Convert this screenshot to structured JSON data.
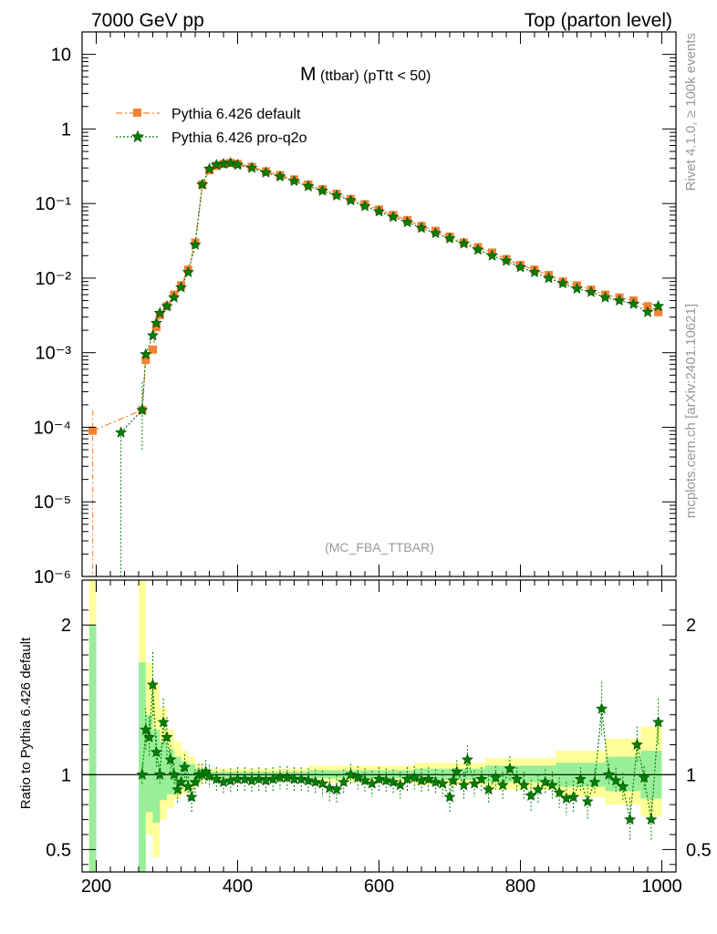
{
  "header": {
    "left": "7000 GeV pp",
    "right": "Top (parton level)"
  },
  "side_labels": {
    "rivet": "Rivet 4.1.0, ≥ 100k events",
    "mcplots": "mcplots.cern.ch [arXiv:2401.10621]"
  },
  "main_title": {
    "symbol": "M",
    "detail": "(ttbar) (pTtt < 50)"
  },
  "analysis_tag": "(MC_FBA_TTBAR)",
  "colors": {
    "default": "#f58231",
    "proq2o": "#008000",
    "band_outer": "#ffff99",
    "band_inner": "#99ee99"
  },
  "chart_data": [
    {
      "type": "line",
      "name": "main",
      "yscale": "log",
      "xlim": [
        180,
        1020
      ],
      "ylim": [
        1e-06,
        20
      ],
      "ytick_labels": [
        "10⁻⁶",
        "10⁻⁵",
        "10⁻⁴",
        "10⁻³",
        "10⁻²",
        "10⁻¹",
        "1",
        "10"
      ],
      "legend": [
        "Pythia 6.426 default",
        "Pythia 6.426 pro-q2o"
      ],
      "series": [
        {
          "name": "Pythia 6.426 default",
          "points": [
            [
              195,
              9e-05
            ],
            [
              265,
              0.00017
            ],
            [
              270,
              0.0008
            ],
            [
              280,
              0.0011
            ],
            [
              285,
              0.0022
            ],
            [
              290,
              0.0032
            ],
            [
              300,
              0.0042
            ],
            [
              310,
              0.006
            ],
            [
              320,
              0.008
            ],
            [
              330,
              0.013
            ],
            [
              340,
              0.03
            ],
            [
              350,
              0.18
            ],
            [
              360,
              0.28
            ],
            [
              370,
              0.32
            ],
            [
              380,
              0.34
            ],
            [
              390,
              0.35
            ],
            [
              400,
              0.34
            ],
            [
              420,
              0.31
            ],
            [
              440,
              0.27
            ],
            [
              460,
              0.24
            ],
            [
              480,
              0.21
            ],
            [
              500,
              0.18
            ],
            [
              520,
              0.155
            ],
            [
              540,
              0.135
            ],
            [
              560,
              0.115
            ],
            [
              580,
              0.098
            ],
            [
              600,
              0.083
            ],
            [
              620,
              0.07
            ],
            [
              640,
              0.06
            ],
            [
              660,
              0.05
            ],
            [
              680,
              0.043
            ],
            [
              700,
              0.036
            ],
            [
              720,
              0.03
            ],
            [
              740,
              0.026
            ],
            [
              760,
              0.022
            ],
            [
              780,
              0.018
            ],
            [
              800,
              0.015
            ],
            [
              820,
              0.013
            ],
            [
              840,
              0.011
            ],
            [
              860,
              0.009
            ],
            [
              880,
              0.008
            ],
            [
              900,
              0.007
            ],
            [
              920,
              0.006
            ],
            [
              940,
              0.0055
            ],
            [
              960,
              0.005
            ],
            [
              980,
              0.0042
            ],
            [
              995,
              0.0035
            ]
          ]
        },
        {
          "name": "Pythia 6.426 pro-q2o",
          "points": [
            [
              235,
              8.5e-05
            ],
            [
              265,
              0.00017
            ],
            [
              270,
              0.00095
            ],
            [
              280,
              0.0017
            ],
            [
              285,
              0.0025
            ],
            [
              290,
              0.0034
            ],
            [
              300,
              0.0042
            ],
            [
              310,
              0.0055
            ],
            [
              320,
              0.0075
            ],
            [
              330,
              0.012
            ],
            [
              340,
              0.028
            ],
            [
              350,
              0.18
            ],
            [
              360,
              0.29
            ],
            [
              370,
              0.33
            ],
            [
              380,
              0.34
            ],
            [
              390,
              0.35
            ],
            [
              400,
              0.33
            ],
            [
              420,
              0.3
            ],
            [
              440,
              0.26
            ],
            [
              460,
              0.23
            ],
            [
              480,
              0.2
            ],
            [
              500,
              0.17
            ],
            [
              520,
              0.148
            ],
            [
              540,
              0.128
            ],
            [
              560,
              0.11
            ],
            [
              580,
              0.092
            ],
            [
              600,
              0.078
            ],
            [
              620,
              0.066
            ],
            [
              640,
              0.056
            ],
            [
              660,
              0.047
            ],
            [
              680,
              0.04
            ],
            [
              700,
              0.034
            ],
            [
              720,
              0.029
            ],
            [
              740,
              0.024
            ],
            [
              760,
              0.02
            ],
            [
              780,
              0.017
            ],
            [
              800,
              0.014
            ],
            [
              820,
              0.012
            ],
            [
              840,
              0.01
            ],
            [
              860,
              0.0085
            ],
            [
              880,
              0.0072
            ],
            [
              900,
              0.0065
            ],
            [
              920,
              0.0055
            ],
            [
              940,
              0.005
            ],
            [
              960,
              0.0045
            ],
            [
              980,
              0.0035
            ],
            [
              995,
              0.0042
            ]
          ]
        }
      ]
    },
    {
      "type": "line",
      "name": "ratio",
      "xlim": [
        180,
        1020
      ],
      "ylim": [
        0.35,
        2.3
      ],
      "ylabel": "Ratio to Pythia 6.426 default",
      "ytick_labels": [
        "0.5",
        "1",
        "2"
      ],
      "xtick_labels": [
        "200",
        "400",
        "600",
        "800",
        "1000"
      ],
      "band_outer": [
        [
          190,
          200,
          0.35,
          2.3
        ],
        [
          260,
          270,
          0.35,
          2.3
        ],
        [
          270,
          280,
          0.6,
          1.75
        ],
        [
          280,
          290,
          0.45,
          1.6
        ],
        [
          290,
          300,
          0.7,
          1.45
        ],
        [
          300,
          310,
          0.78,
          1.3
        ],
        [
          310,
          320,
          0.84,
          1.22
        ],
        [
          320,
          330,
          0.87,
          1.16
        ],
        [
          330,
          340,
          0.9,
          1.12
        ],
        [
          340,
          350,
          0.93,
          1.07
        ],
        [
          350,
          500,
          0.96,
          1.04
        ],
        [
          500,
          650,
          0.95,
          1.06
        ],
        [
          650,
          750,
          0.93,
          1.08
        ],
        [
          750,
          850,
          0.9,
          1.11
        ],
        [
          850,
          920,
          0.85,
          1.16
        ],
        [
          920,
          970,
          0.8,
          1.24
        ],
        [
          970,
          1000,
          0.72,
          1.32
        ]
      ],
      "band_inner": [
        [
          190,
          200,
          0.35,
          2.0
        ],
        [
          260,
          270,
          0.35,
          1.75
        ],
        [
          270,
          280,
          0.75,
          1.4
        ],
        [
          280,
          290,
          0.68,
          1.3
        ],
        [
          290,
          300,
          0.83,
          1.22
        ],
        [
          300,
          310,
          0.87,
          1.17
        ],
        [
          310,
          320,
          0.9,
          1.12
        ],
        [
          320,
          330,
          0.92,
          1.09
        ],
        [
          330,
          340,
          0.94,
          1.07
        ],
        [
          340,
          350,
          0.96,
          1.04
        ],
        [
          350,
          500,
          0.98,
          1.02
        ],
        [
          500,
          650,
          0.975,
          1.03
        ],
        [
          650,
          750,
          0.965,
          1.04
        ],
        [
          750,
          850,
          0.95,
          1.06
        ],
        [
          850,
          920,
          0.92,
          1.08
        ],
        [
          920,
          970,
          0.89,
          1.12
        ],
        [
          970,
          1000,
          0.84,
          1.16
        ]
      ],
      "series": [
        {
          "name": "Pythia 6.426 pro-q2o",
          "points": [
            [
              265,
              1.0
            ],
            [
              270,
              1.3
            ],
            [
              275,
              1.25
            ],
            [
              280,
              1.6
            ],
            [
              285,
              1.15
            ],
            [
              290,
              1.0
            ],
            [
              295,
              1.35
            ],
            [
              300,
              1.25
            ],
            [
              305,
              1.1
            ],
            [
              310,
              1.0
            ],
            [
              315,
              0.9
            ],
            [
              320,
              0.95
            ],
            [
              325,
              1.05
            ],
            [
              330,
              0.92
            ],
            [
              335,
              0.85
            ],
            [
              340,
              0.95
            ],
            [
              345,
              1.0
            ],
            [
              350,
              1.0
            ],
            [
              355,
              1.02
            ],
            [
              360,
              0.99
            ],
            [
              370,
              0.97
            ],
            [
              380,
              0.95
            ],
            [
              390,
              0.96
            ],
            [
              400,
              0.97
            ],
            [
              410,
              0.97
            ],
            [
              420,
              0.96
            ],
            [
              430,
              0.97
            ],
            [
              440,
              0.96
            ],
            [
              450,
              0.97
            ],
            [
              460,
              0.98
            ],
            [
              470,
              0.98
            ],
            [
              480,
              0.97
            ],
            [
              490,
              0.97
            ],
            [
              500,
              0.96
            ],
            [
              510,
              0.95
            ],
            [
              520,
              0.94
            ],
            [
              530,
              0.91
            ],
            [
              540,
              0.9
            ],
            [
              550,
              0.95
            ],
            [
              560,
              1.0
            ],
            [
              570,
              0.98
            ],
            [
              580,
              0.96
            ],
            [
              590,
              0.94
            ],
            [
              600,
              0.97
            ],
            [
              610,
              0.96
            ],
            [
              620,
              0.95
            ],
            [
              630,
              0.93
            ],
            [
              640,
              0.97
            ],
            [
              650,
              0.98
            ],
            [
              660,
              0.96
            ],
            [
              670,
              0.97
            ],
            [
              680,
              0.95
            ],
            [
              690,
              0.94
            ],
            [
              700,
              0.85
            ],
            [
              705,
              0.96
            ],
            [
              710,
              1.02
            ],
            [
              720,
              0.93
            ],
            [
              725,
              1.1
            ],
            [
              735,
              0.94
            ],
            [
              745,
              0.97
            ],
            [
              755,
              0.9
            ],
            [
              765,
              0.98
            ],
            [
              775,
              0.93
            ],
            [
              785,
              1.04
            ],
            [
              795,
              0.97
            ],
            [
              805,
              0.93
            ],
            [
              815,
              0.86
            ],
            [
              825,
              0.9
            ],
            [
              835,
              0.95
            ],
            [
              845,
              0.93
            ],
            [
              855,
              0.88
            ],
            [
              865,
              0.84
            ],
            [
              875,
              0.85
            ],
            [
              885,
              0.97
            ],
            [
              895,
              0.82
            ],
            [
              905,
              0.95
            ],
            [
              915,
              1.44
            ],
            [
              925,
              1.0
            ],
            [
              935,
              0.96
            ],
            [
              945,
              0.92
            ],
            [
              955,
              0.7
            ],
            [
              965,
              1.2
            ],
            [
              975,
              0.98
            ],
            [
              985,
              0.7
            ],
            [
              995,
              1.35
            ]
          ]
        }
      ]
    }
  ]
}
